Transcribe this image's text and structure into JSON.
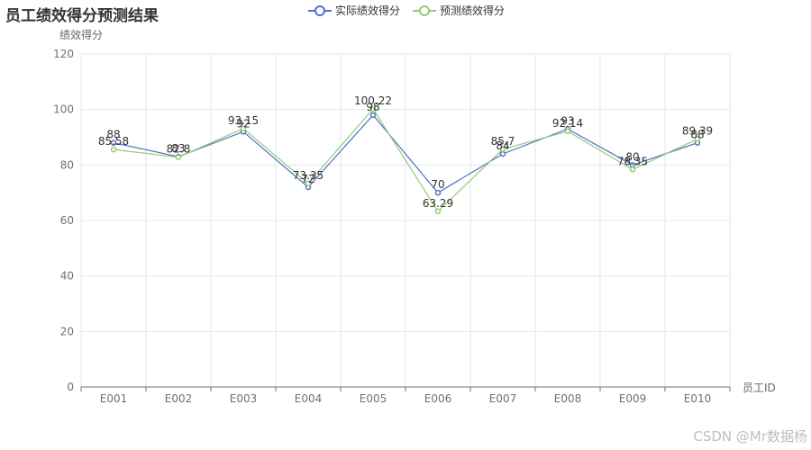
{
  "title": "员工绩效得分预测结果",
  "watermark": "CSDN @Mr数据杨",
  "colors": {
    "actual": "#5470c6",
    "predicted": "#91cc75",
    "axis": "#6e7079",
    "grid": "#e0e6f1",
    "label": "#333333"
  },
  "chart_data": {
    "type": "line",
    "title": "员工绩效得分预测结果",
    "xlabel": "员工ID",
    "ylabel": "绩效得分",
    "categories": [
      "E001",
      "E002",
      "E003",
      "E004",
      "E005",
      "E006",
      "E007",
      "E008",
      "E009",
      "E010"
    ],
    "ylim": [
      0,
      120
    ],
    "yticks": [
      0,
      20,
      40,
      60,
      80,
      100,
      120
    ],
    "grid": true,
    "legend_position": "top-center",
    "series": [
      {
        "name": "实际绩效得分",
        "values": [
          88,
          83,
          92,
          72,
          98,
          70,
          84,
          93,
          80,
          88
        ],
        "labels": [
          "88",
          "83",
          "92",
          "72",
          "98",
          "70",
          "84",
          "93",
          "80",
          "88"
        ]
      },
      {
        "name": "预测绩效得分",
        "values": [
          85.58,
          82.8,
          93.15,
          73.35,
          100.22,
          63.29,
          85.7,
          92.14,
          78.35,
          89.39
        ],
        "labels": [
          "85.58",
          "82.8",
          "93.15",
          "73.35",
          "100.22",
          "63.29",
          "85.7",
          "92.14",
          "78.35",
          "89.39"
        ]
      }
    ]
  }
}
